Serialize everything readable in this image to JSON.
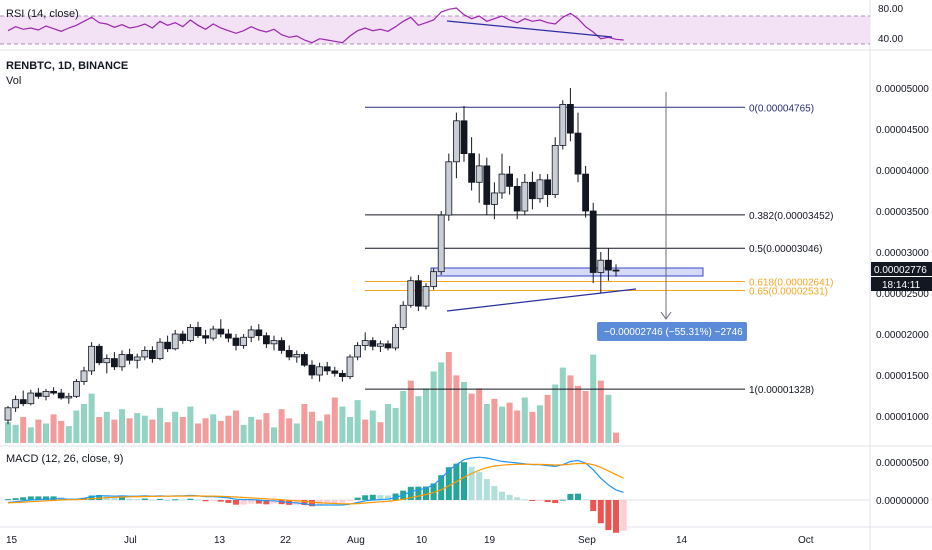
{
  "rsi": {
    "title": "RSI (14, close)",
    "axis_labels": [
      "80.00",
      "40.00"
    ]
  },
  "main": {
    "symbol_title": "RENBTC, 1D, BINANCE",
    "volume_label": "Vol",
    "price_labels": [
      "0.00005000",
      "0.00004500",
      "0.00004000",
      "0.00003500",
      "0.00003000",
      "0.00002500",
      "0.00002000",
      "0.00001500",
      "0.00001000"
    ],
    "current_price": "0.00002776",
    "countdown": "18:14:11",
    "measure_label": "−0.00002746 (−55.31%) −2746"
  },
  "macd": {
    "title": "MACD (12, 26, close, 9)",
    "axis_labels": [
      "0.00000500",
      "0.00000000"
    ]
  },
  "time_axis": {
    "labels": [
      "15",
      "Jul",
      "13",
      "22",
      "Aug",
      "10",
      "19",
      "Sep",
      "14",
      "Oct"
    ]
  },
  "fib_levels": [
    {
      "label": "0(0.00004765)",
      "value": 4.765e-05,
      "color": "#2a2e7a"
    },
    {
      "label": "0.382(0.00003452)",
      "value": 3.452e-05,
      "color": "#131722"
    },
    {
      "label": "0.5(0.00003046)",
      "value": 3.046e-05,
      "color": "#131722"
    },
    {
      "label": "0.618(0.00002641)",
      "value": 2.641e-05,
      "color": "#f5a623"
    },
    {
      "label": "0.65(0.00002531)",
      "value": 2.531e-05,
      "color": "#f5a623"
    },
    {
      "label": "1(0.00001328)",
      "value": 1.328e-05,
      "color": "#131722"
    }
  ],
  "colors": {
    "up_candle": "#c9cdd6",
    "down_candle": "#131722",
    "vol_up": "#7fcbb8",
    "vol_down": "#f28b8b",
    "macd_line": "#2196f3",
    "signal_line": "#ff9800",
    "rsi_line": "#9c27b0",
    "rsi_band": "#f3e1f5",
    "measure": "#5b8bd9",
    "zone": "#c5cbf2"
  },
  "chart_data": [
    {
      "type": "candlestick",
      "title": "RENBTC, 1D, BINANCE",
      "ylim": [
        8e-06,
        5.1e-05
      ],
      "ohlc": [
        [
          9.5e-06,
          1.12e-05,
          9e-06,
          1.1e-05
        ],
        [
          1.1e-05,
          1.25e-05,
          1.05e-05,
          1.2e-05
        ],
        [
          1.2e-05,
          1.31e-05,
          1.12e-05,
          1.15e-05
        ],
        [
          1.15e-05,
          1.32e-05,
          1.13e-05,
          1.28e-05
        ],
        [
          1.28e-05,
          1.34e-05,
          1.21e-05,
          1.24e-05
        ],
        [
          1.24e-05,
          1.33e-05,
          1.19e-05,
          1.3e-05
        ],
        [
          1.3e-05,
          1.35e-05,
          1.26e-05,
          1.28e-05
        ],
        [
          1.28e-05,
          1.33e-05,
          1.2e-05,
          1.22e-05
        ],
        [
          1.22e-05,
          1.28e-05,
          1.15e-05,
          1.24e-05
        ],
        [
          1.24e-05,
          1.45e-05,
          1.22e-05,
          1.42e-05
        ],
        [
          1.42e-05,
          1.6e-05,
          1.38e-05,
          1.55e-05
        ],
        [
          1.55e-05,
          1.9e-05,
          1.5e-05,
          1.85e-05
        ],
        [
          1.85e-05,
          1.88e-05,
          1.62e-05,
          1.65e-05
        ],
        [
          1.65e-05,
          1.75e-05,
          1.52e-05,
          1.7e-05
        ],
        [
          1.7e-05,
          1.78e-05,
          1.56e-05,
          1.6e-05
        ],
        [
          1.6e-05,
          1.8e-05,
          1.55e-05,
          1.75e-05
        ],
        [
          1.75e-05,
          1.82e-05,
          1.63e-05,
          1.68e-05
        ],
        [
          1.68e-05,
          1.76e-05,
          1.58e-05,
          1.72e-05
        ],
        [
          1.72e-05,
          1.85e-05,
          1.68e-05,
          1.8e-05
        ],
        [
          1.8e-05,
          1.85e-05,
          1.65e-05,
          1.7e-05
        ],
        [
          1.7e-05,
          1.95e-05,
          1.68e-05,
          1.9e-05
        ],
        [
          1.9e-05,
          1.98e-05,
          1.78e-05,
          1.82e-05
        ],
        [
          1.82e-05,
          2.05e-05,
          1.8e-05,
          2e-05
        ],
        [
          2e-05,
          2.04e-05,
          1.88e-05,
          1.92e-05
        ],
        [
          1.92e-05,
          2.12e-05,
          1.9e-05,
          2.08e-05
        ],
        [
          2.08e-05,
          2.15e-05,
          1.95e-05,
          1.98e-05
        ],
        [
          1.98e-05,
          2.05e-05,
          1.88e-05,
          1.95e-05
        ],
        [
          1.95e-05,
          2.1e-05,
          1.92e-05,
          2.06e-05
        ],
        [
          2.06e-05,
          2.18e-05,
          1.96e-05,
          2e-05
        ],
        [
          2e-05,
          2.06e-05,
          1.9e-05,
          1.95e-05
        ],
        [
          1.95e-05,
          2e-05,
          1.8e-05,
          1.86e-05
        ],
        [
          1.86e-05,
          2e-05,
          1.82e-05,
          1.96e-05
        ],
        [
          1.96e-05,
          2.1e-05,
          1.9e-05,
          2.05e-05
        ],
        [
          2.05e-05,
          2.12e-05,
          1.92e-05,
          1.98e-05
        ],
        [
          1.98e-05,
          2.02e-05,
          1.83e-05,
          1.88e-05
        ],
        [
          1.88e-05,
          1.98e-05,
          1.8e-05,
          1.92e-05
        ],
        [
          1.92e-05,
          1.96e-05,
          1.76e-05,
          1.8e-05
        ],
        [
          1.8e-05,
          1.86e-05,
          1.68e-05,
          1.72e-05
        ],
        [
          1.72e-05,
          1.8e-05,
          1.65e-05,
          1.75e-05
        ],
        [
          1.75e-05,
          1.78e-05,
          1.6e-05,
          1.62e-05
        ],
        [
          1.62e-05,
          1.68e-05,
          1.45e-05,
          1.5e-05
        ],
        [
          1.5e-05,
          1.65e-05,
          1.42e-05,
          1.6e-05
        ],
        [
          1.6e-05,
          1.66e-05,
          1.5e-05,
          1.55e-05
        ],
        [
          1.55e-05,
          1.6e-05,
          1.48e-05,
          1.52e-05
        ],
        [
          1.52e-05,
          1.56e-05,
          1.42e-05,
          1.48e-05
        ],
        [
          1.48e-05,
          1.75e-05,
          1.45e-05,
          1.72e-05
        ],
        [
          1.72e-05,
          1.9e-05,
          1.68e-05,
          1.86e-05
        ],
        [
          1.86e-05,
          2.02e-05,
          1.8e-05,
          1.92e-05
        ],
        [
          1.92e-05,
          1.96e-05,
          1.8e-05,
          1.85e-05
        ],
        [
          1.85e-05,
          1.92e-05,
          1.78e-05,
          1.88e-05
        ],
        [
          1.88e-05,
          1.92e-05,
          1.8e-05,
          1.83e-05
        ],
        [
          1.83e-05,
          2.12e-05,
          1.8e-05,
          2.08e-05
        ],
        [
          2.08e-05,
          2.4e-05,
          2.05e-05,
          2.35e-05
        ],
        [
          2.35e-05,
          2.7e-05,
          2.32e-05,
          2.65e-05
        ],
        [
          2.65e-05,
          2.72e-05,
          2.28e-05,
          2.34e-05
        ],
        [
          2.34e-05,
          2.62e-05,
          2.3e-05,
          2.58e-05
        ],
        [
          2.58e-05,
          2.8e-05,
          2.54e-05,
          2.76e-05
        ],
        [
          2.76e-05,
          3.5e-05,
          2.72e-05,
          3.45e-05
        ],
        [
          3.45e-05,
          4.2e-05,
          3.38e-05,
          4.1e-05
        ],
        [
          4.1e-05,
          4.7e-05,
          3.9e-05,
          4.6e-05
        ],
        [
          4.6e-05,
          4.78e-05,
          4.1e-05,
          4.2e-05
        ],
        [
          4.2e-05,
          4.4e-05,
          3.75e-05,
          3.85e-05
        ],
        [
          3.85e-05,
          4.2e-05,
          3.6e-05,
          4.05e-05
        ],
        [
          4.05e-05,
          4.15e-05,
          3.45e-05,
          3.58e-05
        ],
        [
          3.58e-05,
          3.85e-05,
          3.4e-05,
          3.72e-05
        ],
        [
          3.72e-05,
          4.2e-05,
          3.65e-05,
          3.95e-05
        ],
        [
          3.95e-05,
          4.05e-05,
          3.7e-05,
          3.8e-05
        ],
        [
          3.8e-05,
          3.9e-05,
          3.4e-05,
          3.5e-05
        ],
        [
          3.5e-05,
          3.95e-05,
          3.45e-05,
          3.85e-05
        ],
        [
          3.85e-05,
          3.98e-05,
          3.52e-05,
          3.65e-05
        ],
        [
          3.65e-05,
          3.95e-05,
          3.6e-05,
          3.88e-05
        ],
        [
          3.88e-05,
          3.95e-05,
          3.55e-05,
          3.7e-05
        ],
        [
          3.7e-05,
          4.4e-05,
          3.66e-05,
          4.3e-05
        ],
        [
          4.3e-05,
          4.85e-05,
          4.25e-05,
          4.8e-05
        ],
        [
          4.8e-05,
          5e-05,
          4.35e-05,
          4.45e-05
        ],
        [
          4.45e-05,
          4.7e-05,
          3.85e-05,
          3.95e-05
        ],
        [
          3.95e-05,
          4.05e-05,
          3.42e-05,
          3.5e-05
        ],
        [
          3.5e-05,
          3.6e-05,
          2.62e-05,
          2.75e-05
        ],
        [
          2.75e-05,
          3e-05,
          2.5e-05,
          2.9e-05
        ],
        [
          2.9e-05,
          3.05e-05,
          2.65e-05,
          2.78e-05
        ],
        [
          2.78e-05,
          2.85e-05,
          2.7e-05,
          2.77e-05
        ]
      ]
    },
    {
      "type": "bar",
      "title": "Vol",
      "values": [
        16,
        14,
        20,
        12,
        18,
        15,
        22,
        17,
        13,
        25,
        30,
        38,
        20,
        24,
        18,
        26,
        19,
        23,
        21,
        18,
        27,
        16,
        24,
        20,
        28,
        15,
        19,
        22,
        17,
        21,
        25,
        14,
        20,
        18,
        23,
        12,
        26,
        19,
        15,
        30,
        24,
        17,
        22,
        35,
        28,
        20,
        33,
        18,
        25,
        16,
        30,
        27,
        40,
        48,
        36,
        42,
        55,
        62,
        70,
        52,
        47,
        38,
        42,
        30,
        34,
        28,
        31,
        25,
        35,
        24,
        29,
        37,
        45,
        58,
        52,
        44,
        40,
        68,
        48,
        37,
        8
      ],
      "up": [
        1,
        1,
        0,
        1,
        0,
        1,
        0,
        0,
        1,
        1,
        1,
        1,
        0,
        1,
        0,
        1,
        0,
        1,
        1,
        0,
        1,
        0,
        1,
        0,
        1,
        0,
        0,
        1,
        0,
        0,
        0,
        1,
        1,
        0,
        0,
        1,
        0,
        0,
        1,
        0,
        0,
        1,
        0,
        0,
        1,
        1,
        1,
        0,
        1,
        0,
        1,
        1,
        1,
        0,
        1,
        1,
        1,
        1,
        0,
        0,
        1,
        0,
        0,
        1,
        0,
        1,
        0,
        0,
        1,
        0,
        1,
        0,
        1,
        1,
        0,
        0,
        0,
        1,
        0,
        1,
        0
      ]
    },
    {
      "type": "line",
      "title": "RSI (14, close)",
      "ylim": [
        30,
        90
      ],
      "series": [
        {
          "values": [
            56,
            62,
            58,
            60,
            57,
            63,
            59,
            55,
            60,
            64,
            70,
            76,
            68,
            66,
            61,
            65,
            60,
            62,
            66,
            60,
            70,
            64,
            68,
            62,
            72,
            64,
            58,
            66,
            60,
            56,
            52,
            56,
            62,
            57,
            54,
            58,
            50,
            46,
            48,
            42,
            38,
            44,
            42,
            40,
            38,
            48,
            56,
            60,
            56,
            58,
            55,
            62,
            70,
            76,
            64,
            68,
            72,
            84,
            88,
            90,
            80,
            74,
            78,
            70,
            74,
            78,
            72,
            68,
            74,
            70,
            72,
            68,
            66,
            76,
            82,
            74,
            62,
            54,
            44,
            46,
            43,
            42
          ]
        }
      ]
    },
    {
      "type": "bar",
      "title": "MACD (12, 26, close, 9)",
      "ylim": [
        -1.5e-06,
        6e-06
      ],
      "series": [
        {
          "values": [
            -0.3,
            -0.2,
            -0.1,
            0.0,
            0.05,
            0.1,
            0.15,
            0.15,
            0.1,
            0.1,
            0.2,
            0.4,
            0.5,
            0.5,
            0.45,
            0.5,
            0.45,
            0.45,
            0.5,
            0.45,
            0.5,
            0.45,
            0.5,
            0.5,
            0.55,
            0.5,
            0.4,
            0.4,
            0.35,
            0.25,
            0.1,
            0.05,
            0.05,
            0.0,
            -0.1,
            -0.1,
            -0.2,
            -0.3,
            -0.35,
            -0.45,
            -0.6,
            -0.6,
            -0.6,
            -0.6,
            -0.6,
            -0.5,
            -0.3,
            -0.1,
            0.0,
            0.05,
            0.1,
            0.3,
            0.6,
            1.0,
            1.2,
            1.4,
            1.8,
            2.6,
            3.5,
            4.2,
            4.8,
            5.0,
            5.1,
            5.0,
            4.8,
            4.6,
            4.5,
            4.4,
            4.3,
            4.2,
            4.2,
            4.1,
            4.0,
            4.2,
            4.6,
            4.7,
            4.4,
            3.6,
            2.6,
            1.8,
            1.2,
            0.9
          ]
        },
        {
          "values": [
            -0.35,
            -0.3,
            -0.25,
            -0.2,
            -0.15,
            -0.1,
            -0.05,
            0.0,
            0.03,
            0.05,
            0.08,
            0.15,
            0.22,
            0.28,
            0.32,
            0.36,
            0.38,
            0.4,
            0.42,
            0.43,
            0.44,
            0.45,
            0.46,
            0.47,
            0.48,
            0.48,
            0.47,
            0.46,
            0.44,
            0.41,
            0.36,
            0.3,
            0.25,
            0.2,
            0.14,
            0.09,
            0.03,
            -0.03,
            -0.1,
            -0.17,
            -0.25,
            -0.32,
            -0.38,
            -0.42,
            -0.45,
            -0.46,
            -0.43,
            -0.36,
            -0.29,
            -0.22,
            -0.15,
            -0.06,
            0.08,
            0.27,
            0.46,
            0.65,
            0.88,
            1.22,
            1.68,
            2.18,
            2.7,
            3.16,
            3.55,
            3.84,
            4.03,
            4.14,
            4.21,
            4.25,
            4.26,
            4.25,
            4.24,
            4.21,
            4.17,
            4.18,
            4.26,
            4.35,
            4.36,
            4.21,
            3.89,
            3.47,
            3.02,
            2.6
          ]
        }
      ]
    }
  ]
}
